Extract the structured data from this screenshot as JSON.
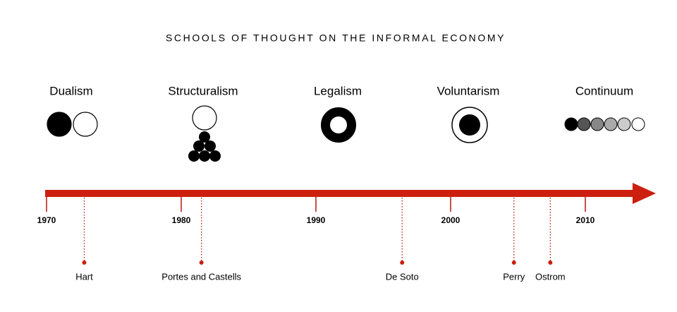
{
  "title": "SCHOOLS OF THOUGHT ON THE INFORMAL ECONOMY",
  "schools": [
    "Dualism",
    "Structuralism",
    "Legalism",
    "Voluntarism",
    "Continuum"
  ],
  "timeline": {
    "ticks": [
      1970,
      1980,
      1990,
      2000,
      2010
    ],
    "events": [
      {
        "label": "Hart",
        "year": 1972.8
      },
      {
        "label": "Portes and Castells",
        "year": 1981.5
      },
      {
        "label": "De Soto",
        "year": 1996.4
      },
      {
        "label": "Perry",
        "year": 2004.7
      },
      {
        "label": "Ostrom",
        "year": 2007.4
      }
    ]
  }
}
